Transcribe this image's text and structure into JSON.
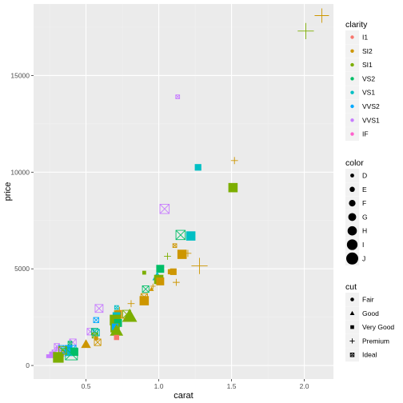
{
  "chart_data": {
    "type": "scatter",
    "xlabel": "carat",
    "ylabel": "price",
    "xlim": [
      0.14,
      2.2
    ],
    "ylim": [
      -700,
      18700
    ],
    "x_ticks": [
      0.5,
      1.0,
      1.5,
      2.0
    ],
    "x_tick_labels": [
      "0.5",
      "1.0",
      "1.5",
      "2.0"
    ],
    "y_ticks": [
      0,
      5000,
      10000,
      15000
    ],
    "y_tick_labels": [
      "0",
      "5000",
      "10000",
      "15000"
    ],
    "grid": true,
    "background": "#ebebeb",
    "legend": {
      "placement": "right",
      "clarity": {
        "title": "clarity",
        "items": [
          {
            "label": "I1",
            "color": "#F8766D"
          },
          {
            "label": "SI2",
            "color": "#CD9600"
          },
          {
            "label": "SI1",
            "color": "#7CAE00"
          },
          {
            "label": "VS2",
            "color": "#00BE67"
          },
          {
            "label": "VS1",
            "color": "#00BFC4"
          },
          {
            "label": "VVS2",
            "color": "#00A9FF"
          },
          {
            "label": "VVS1",
            "color": "#C77CFF"
          },
          {
            "label": "IF",
            "color": "#FF61CC"
          }
        ]
      },
      "color": {
        "title": "color",
        "items": [
          "D",
          "E",
          "F",
          "G",
          "H",
          "I",
          "J"
        ]
      },
      "cut": {
        "title": "cut",
        "items": [
          {
            "label": "Fair",
            "shape": "circle"
          },
          {
            "label": "Good",
            "shape": "triangle"
          },
          {
            "label": "Very Good",
            "shape": "square"
          },
          {
            "label": "Premium",
            "shape": "plus"
          },
          {
            "label": "Ideal",
            "shape": "boxx"
          }
        ]
      }
    },
    "points": [
      {
        "carat": 2.12,
        "price": 18100,
        "clarity": "SI2",
        "color": "I",
        "cut": "Premium"
      },
      {
        "carat": 2.01,
        "price": 17300,
        "clarity": "SI1",
        "color": "J",
        "cut": "Premium"
      },
      {
        "carat": 1.13,
        "price": 13900,
        "clarity": "VVS1",
        "color": "D",
        "cut": "Ideal"
      },
      {
        "carat": 1.52,
        "price": 10600,
        "clarity": "SI2",
        "color": "E",
        "cut": "Premium"
      },
      {
        "carat": 1.27,
        "price": 10250,
        "clarity": "VS1",
        "color": "F",
        "cut": "Very Good"
      },
      {
        "carat": 1.51,
        "price": 9200,
        "clarity": "SI1",
        "color": "H",
        "cut": "Very Good"
      },
      {
        "carat": 1.04,
        "price": 8100,
        "clarity": "VVS1",
        "color": "H",
        "cut": "Ideal"
      },
      {
        "carat": 1.15,
        "price": 6750,
        "clarity": "VS2",
        "color": "H",
        "cut": "Ideal"
      },
      {
        "carat": 1.22,
        "price": 6700,
        "clarity": "VS1",
        "color": "H",
        "cut": "Very Good"
      },
      {
        "carat": 1.11,
        "price": 6200,
        "clarity": "SI2",
        "color": "D",
        "cut": "Ideal"
      },
      {
        "carat": 1.16,
        "price": 5750,
        "clarity": "SI2",
        "color": "H",
        "cut": "Very Good"
      },
      {
        "carat": 1.06,
        "price": 5650,
        "clarity": "SI1",
        "color": "E",
        "cut": "Premium"
      },
      {
        "carat": 1.2,
        "price": 5800,
        "clarity": "SI2",
        "color": "E",
        "cut": "Premium"
      },
      {
        "carat": 1.28,
        "price": 5150,
        "clarity": "SI2",
        "color": "J",
        "cut": "Premium"
      },
      {
        "carat": 1.01,
        "price": 5000,
        "clarity": "VS2",
        "color": "G",
        "cut": "Very Good"
      },
      {
        "carat": 1.08,
        "price": 4850,
        "clarity": "SI2",
        "color": "E",
        "cut": "Very Good"
      },
      {
        "carat": 1.1,
        "price": 4850,
        "clarity": "SI2",
        "color": "F",
        "cut": "Very Good"
      },
      {
        "carat": 0.9,
        "price": 4800,
        "clarity": "SI1",
        "color": "D",
        "cut": "Very Good"
      },
      {
        "carat": 0.99,
        "price": 4600,
        "clarity": "VS1",
        "color": "G",
        "cut": "Good"
      },
      {
        "carat": 1.0,
        "price": 4450,
        "clarity": "SI1",
        "color": "H",
        "cut": "Very Good"
      },
      {
        "carat": 1.01,
        "price": 4350,
        "clarity": "SI2",
        "color": "G",
        "cut": "Very Good"
      },
      {
        "carat": 1.12,
        "price": 4300,
        "clarity": "SI2",
        "color": "E",
        "cut": "Premium"
      },
      {
        "carat": 0.96,
        "price": 4100,
        "clarity": "SI2",
        "color": "D",
        "cut": "Premium"
      },
      {
        "carat": 0.95,
        "price": 3950,
        "clarity": "SI2",
        "color": "D",
        "cut": "Good"
      },
      {
        "carat": 0.91,
        "price": 3950,
        "clarity": "VS2",
        "color": "F",
        "cut": "Ideal"
      },
      {
        "carat": 0.9,
        "price": 3550,
        "clarity": "SI2",
        "color": "F",
        "cut": "Ideal"
      },
      {
        "carat": 0.9,
        "price": 3350,
        "clarity": "SI2",
        "color": "H",
        "cut": "Very Good"
      },
      {
        "carat": 0.81,
        "price": 3200,
        "clarity": "SI2",
        "color": "E",
        "cut": "Premium"
      },
      {
        "carat": 0.59,
        "price": 2950,
        "clarity": "VVS1",
        "color": "G",
        "cut": "Ideal"
      },
      {
        "carat": 0.71,
        "price": 3000,
        "clarity": "VS1",
        "color": "D",
        "cut": "Ideal"
      },
      {
        "carat": 0.73,
        "price": 2850,
        "clarity": "SI2",
        "color": "E",
        "cut": "Premium"
      },
      {
        "carat": 0.78,
        "price": 2650,
        "clarity": "SI1",
        "color": "G",
        "cut": "Ideal"
      },
      {
        "carat": 0.72,
        "price": 2650,
        "clarity": "SI2",
        "color": "G",
        "cut": "Very Good"
      },
      {
        "carat": 0.8,
        "price": 2550,
        "clarity": "SI1",
        "color": "J",
        "cut": "Good"
      },
      {
        "carat": 0.71,
        "price": 2550,
        "clarity": "VS1",
        "color": "G",
        "cut": "Very Good"
      },
      {
        "carat": 0.74,
        "price": 2450,
        "clarity": "SI2",
        "color": "F",
        "cut": "Premium"
      },
      {
        "carat": 0.7,
        "price": 2350,
        "clarity": "SI1",
        "color": "I",
        "cut": "Very Good"
      },
      {
        "carat": 0.57,
        "price": 2350,
        "clarity": "VVS2",
        "color": "E",
        "cut": "Ideal"
      },
      {
        "carat": 0.72,
        "price": 2200,
        "clarity": "VS2",
        "color": "G",
        "cut": "Very Good"
      },
      {
        "carat": 0.7,
        "price": 1950,
        "clarity": "SI1",
        "color": "H",
        "cut": "Very Good"
      },
      {
        "carat": 0.7,
        "price": 2000,
        "clarity": "VVS2",
        "color": "F",
        "cut": "Very Good"
      },
      {
        "carat": 0.71,
        "price": 1800,
        "clarity": "SI1",
        "color": "I",
        "cut": "Good"
      },
      {
        "carat": 0.53,
        "price": 1750,
        "clarity": "VVS1",
        "color": "F",
        "cut": "Ideal"
      },
      {
        "carat": 0.56,
        "price": 1750,
        "clarity": "VS2",
        "color": "F",
        "cut": "Ideal"
      },
      {
        "carat": 0.57,
        "price": 1700,
        "clarity": "VS1",
        "color": "F",
        "cut": "Ideal"
      },
      {
        "carat": 0.56,
        "price": 1550,
        "clarity": "SI1",
        "color": "E",
        "cut": "Ideal"
      },
      {
        "carat": 0.71,
        "price": 1450,
        "clarity": "I1",
        "color": "E",
        "cut": "Very Good"
      },
      {
        "carat": 0.57,
        "price": 1400,
        "clarity": "SI2",
        "color": "D",
        "cut": "Very Good"
      },
      {
        "carat": 0.58,
        "price": 1200,
        "clarity": "SI2",
        "color": "F",
        "cut": "Ideal"
      },
      {
        "carat": 0.41,
        "price": 1200,
        "clarity": "VVS1",
        "color": "F",
        "cut": "Ideal"
      },
      {
        "carat": 0.39,
        "price": 1150,
        "clarity": "VS2",
        "color": "D",
        "cut": "Ideal"
      },
      {
        "carat": 0.5,
        "price": 1100,
        "clarity": "SI2",
        "color": "G",
        "cut": "Good"
      },
      {
        "carat": 0.3,
        "price": 1000,
        "clarity": "VVS1",
        "color": "E",
        "cut": "Ideal"
      },
      {
        "carat": 0.33,
        "price": 900,
        "clarity": "VVS2",
        "color": "E",
        "cut": "Ideal"
      },
      {
        "carat": 0.31,
        "price": 850,
        "clarity": "VVS1",
        "color": "D",
        "cut": "Ideal"
      },
      {
        "carat": 0.38,
        "price": 850,
        "clarity": "VVS2",
        "color": "G",
        "cut": "Very Good"
      },
      {
        "carat": 0.4,
        "price": 800,
        "clarity": "VVS2",
        "color": "H",
        "cut": "Ideal"
      },
      {
        "carat": 0.35,
        "price": 750,
        "clarity": "VS2",
        "color": "E",
        "cut": "Ideal"
      },
      {
        "carat": 0.28,
        "price": 700,
        "clarity": "VVS1",
        "color": "D",
        "cut": "Ideal"
      },
      {
        "carat": 0.42,
        "price": 700,
        "clarity": "VS2",
        "color": "G",
        "cut": "Very Good"
      },
      {
        "carat": 0.38,
        "price": 650,
        "clarity": "VS1",
        "color": "F",
        "cut": "Good"
      },
      {
        "carat": 0.33,
        "price": 600,
        "clarity": "VVS1",
        "color": "E",
        "cut": "Ideal"
      },
      {
        "carat": 0.27,
        "price": 550,
        "clarity": "VVS1",
        "color": "F",
        "cut": "Very Good"
      },
      {
        "carat": 0.3,
        "price": 500,
        "clarity": "SI1",
        "color": "E",
        "cut": "Good"
      },
      {
        "carat": 0.31,
        "price": 420,
        "clarity": "SI1",
        "color": "I",
        "cut": "Very Good"
      },
      {
        "carat": 0.24,
        "price": 480,
        "clarity": "VVS1",
        "color": "D",
        "cut": "Very Good"
      },
      {
        "carat": 0.4,
        "price": 600,
        "clarity": "VS2",
        "color": "J",
        "cut": "Ideal"
      },
      {
        "carat": 0.36,
        "price": 650,
        "clarity": "VVS2",
        "color": "E",
        "cut": "Premium"
      },
      {
        "carat": 0.34,
        "price": 780,
        "clarity": "SI1",
        "color": "G",
        "cut": "Ideal"
      }
    ]
  }
}
